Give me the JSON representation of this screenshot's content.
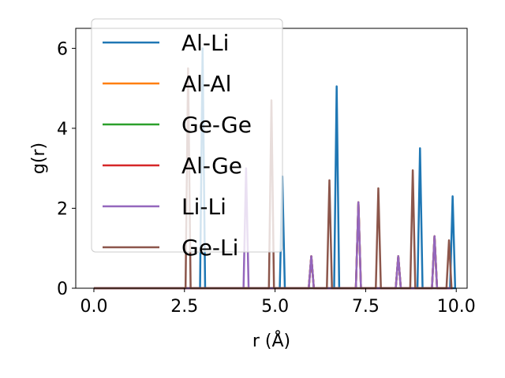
{
  "chart_data": {
    "type": "line",
    "xlabel": "r (Å)",
    "ylabel": "g(r)",
    "xlim": [
      -0.5,
      10.3
    ],
    "ylim": [
      0,
      6.5
    ],
    "xticks": [
      "0.0",
      "2.5",
      "5.0",
      "7.5",
      "10.0"
    ],
    "yticks": [
      "0",
      "2",
      "4",
      "6"
    ],
    "grid": false,
    "legend_position": "top-left",
    "series": [
      {
        "name": "Al-Li",
        "color": "#1f77b4",
        "peaks": [
          [
            3.0,
            6.0
          ],
          [
            5.2,
            2.8
          ],
          [
            6.7,
            5.05
          ],
          [
            9.0,
            3.5
          ],
          [
            9.9,
            2.3
          ]
        ]
      },
      {
        "name": "Al-Al",
        "color": "#ff7f0e",
        "peaks": [
          [
            6.0,
            0.8
          ],
          [
            7.3,
            2.15
          ],
          [
            8.4,
            0.8
          ],
          [
            9.4,
            1.3
          ]
        ]
      },
      {
        "name": "Ge-Ge",
        "color": "#2ca02c",
        "peaks": [
          [
            6.0,
            0.8
          ],
          [
            7.3,
            2.15
          ],
          [
            8.4,
            0.8
          ],
          [
            9.4,
            1.3
          ]
        ]
      },
      {
        "name": "Al-Ge",
        "color": "#d62728",
        "peaks": [
          [
            6.0,
            0.8
          ],
          [
            7.3,
            2.15
          ],
          [
            8.4,
            0.8
          ],
          [
            9.4,
            1.3
          ]
        ]
      },
      {
        "name": "Li-Li",
        "color": "#9467bd",
        "peaks": [
          [
            4.2,
            3.0
          ],
          [
            6.0,
            0.8
          ],
          [
            7.3,
            2.15
          ],
          [
            8.4,
            0.8
          ],
          [
            9.4,
            1.3
          ]
        ]
      },
      {
        "name": "Ge-Li",
        "color": "#8c564b",
        "peaks": [
          [
            2.6,
            5.5
          ],
          [
            4.9,
            4.7
          ],
          [
            6.5,
            2.7
          ],
          [
            7.85,
            2.5
          ],
          [
            8.8,
            2.95
          ],
          [
            9.8,
            1.2
          ]
        ]
      }
    ]
  }
}
